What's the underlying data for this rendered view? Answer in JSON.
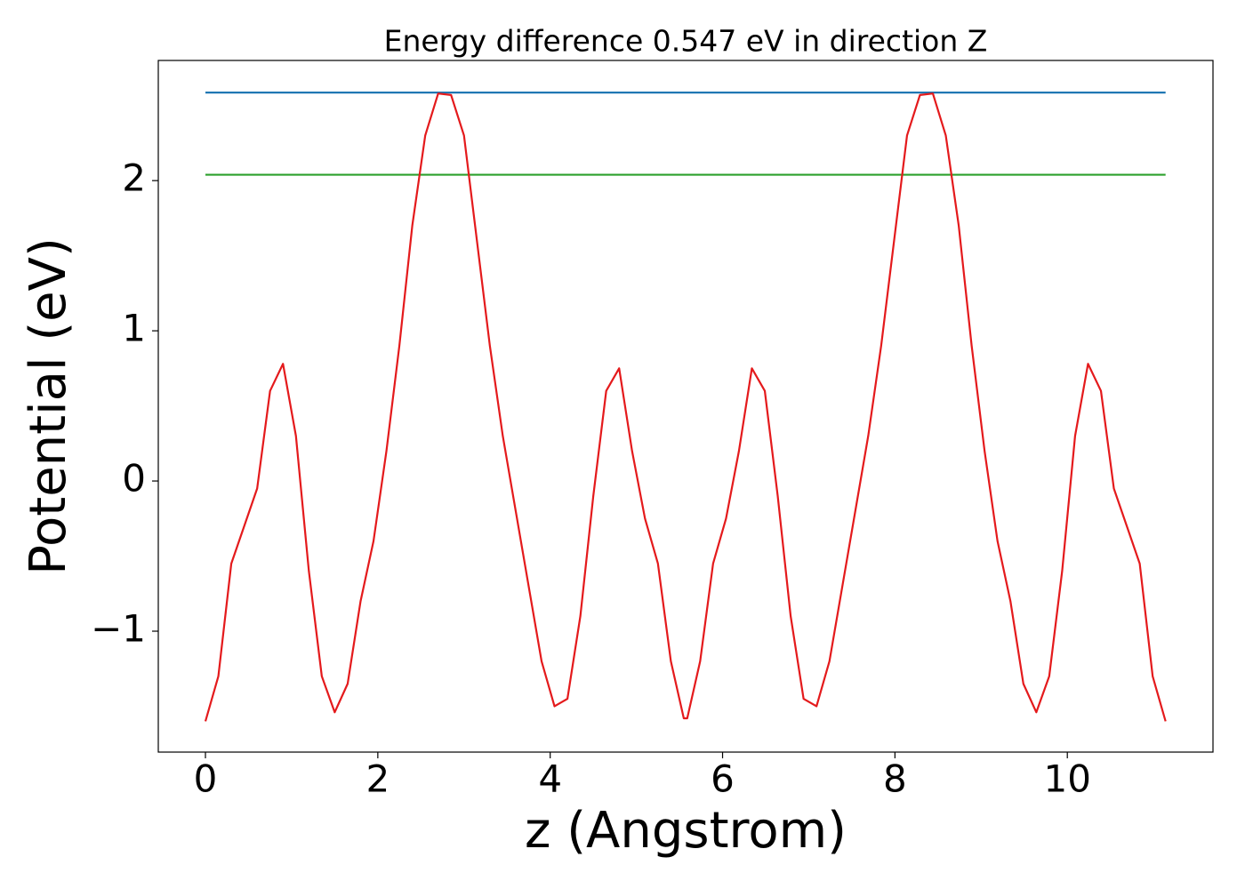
{
  "chart_data": {
    "type": "line",
    "title": "Energy difference 0.547 eV in direction Z",
    "xlabel": "z (Angstrom)",
    "ylabel": "Potential (eV)",
    "xlim": [
      -0.547,
      11.69
    ],
    "ylim": [
      -1.805,
      2.8
    ],
    "xticks": [
      0,
      2,
      4,
      6,
      8,
      10
    ],
    "yticks": [
      {
        "value": -1,
        "label": "−1"
      },
      0,
      1,
      2
    ],
    "series": [
      {
        "color": "#1f77b4",
        "x": [
          0,
          11.14
        ],
        "values": [
          2.586,
          2.586
        ]
      },
      {
        "color": "#2ca02c",
        "x": [
          0,
          11.14
        ],
        "values": [
          2.039,
          2.039
        ]
      },
      {
        "color": "#e41a1c",
        "x": [
          0,
          0.15,
          0.3,
          0.45,
          0.6,
          0.75,
          0.9,
          1.05,
          1.2,
          1.35,
          1.5,
          1.65,
          1.8,
          1.95,
          2.1,
          2.25,
          2.4,
          2.55,
          2.7,
          2.85,
          3.0,
          3.15,
          3.3,
          3.45,
          3.6,
          3.75,
          3.9,
          4.05,
          4.2,
          4.35,
          4.5,
          4.65,
          4.8,
          4.95,
          5.1,
          5.25,
          5.4,
          5.55,
          5.59,
          5.74,
          5.89,
          6.04,
          6.19,
          6.34,
          6.49,
          6.64,
          6.79,
          6.94,
          7.09,
          7.24,
          7.39,
          7.54,
          7.69,
          7.84,
          7.99,
          8.14,
          8.29,
          8.44,
          8.59,
          8.74,
          8.89,
          9.04,
          9.19,
          9.34,
          9.49,
          9.64,
          9.79,
          9.94,
          10.09,
          10.24,
          10.39,
          10.54,
          10.69,
          10.84,
          10.99,
          11.14
        ],
        "values": [
          -1.6,
          -1.3,
          -0.55,
          -0.3,
          -0.05,
          0.6,
          0.78,
          0.3,
          -0.6,
          -1.3,
          -1.54,
          -1.35,
          -0.8,
          -0.4,
          0.2,
          0.9,
          1.7,
          2.3,
          2.58,
          2.57,
          2.3,
          1.6,
          0.9,
          0.3,
          -0.2,
          -0.7,
          -1.2,
          -1.5,
          -1.45,
          -0.9,
          -0.1,
          0.6,
          0.75,
          0.2,
          -0.25,
          -0.55,
          -1.2,
          -1.58,
          -1.58,
          -1.2,
          -0.55,
          -0.25,
          0.2,
          0.75,
          0.6,
          -0.1,
          -0.9,
          -1.45,
          -1.5,
          -1.2,
          -0.7,
          -0.2,
          0.3,
          0.9,
          1.6,
          2.3,
          2.57,
          2.58,
          2.3,
          1.7,
          0.9,
          0.2,
          -0.4,
          -0.8,
          -1.35,
          -1.54,
          -1.3,
          -0.6,
          0.3,
          0.78,
          0.6,
          -0.05,
          -0.3,
          -0.55,
          -1.3,
          -1.6
        ]
      }
    ]
  }
}
